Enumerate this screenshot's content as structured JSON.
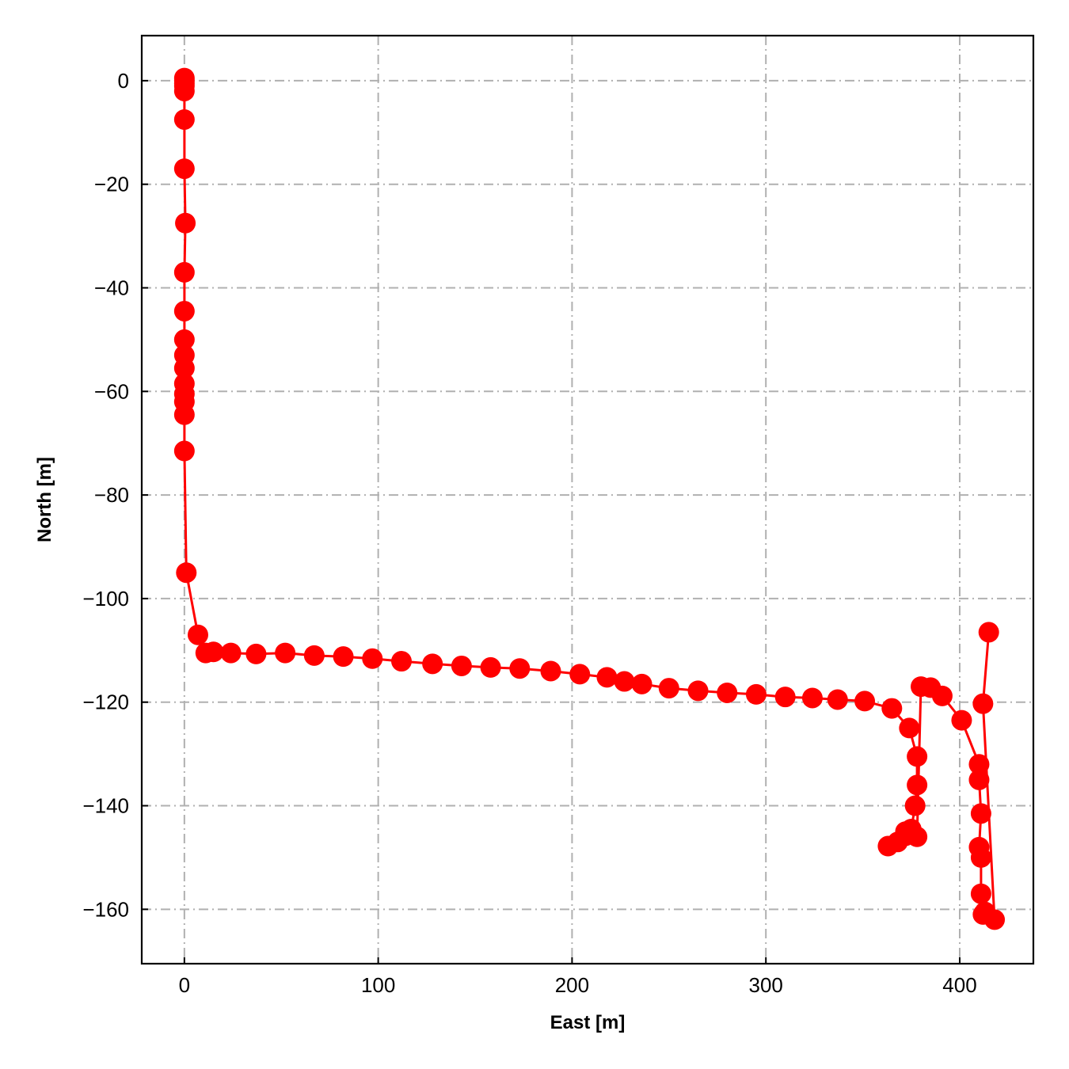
{
  "chart_data": {
    "type": "line",
    "title": "",
    "xlabel": "East [m]",
    "ylabel": "North [m]",
    "xlim": [
      -22,
      438
    ],
    "ylim": [
      -170.5,
      8.7
    ],
    "xticks": [
      0,
      100,
      200,
      300,
      400
    ],
    "yticks": [
      0,
      -20,
      -40,
      -60,
      -80,
      -100,
      -120,
      -140,
      -160
    ],
    "xtick_labels": [
      "0",
      "100",
      "200",
      "300",
      "400"
    ],
    "ytick_labels": [
      "0",
      "−20",
      "−40",
      "−60",
      "−80",
      "−100",
      "−120",
      "−140",
      "−160"
    ],
    "grid": true,
    "legend": "none",
    "series": [
      {
        "color": "#ff0000",
        "marker": "circle",
        "x": [
          0,
          0,
          0,
          0,
          0,
          0,
          0,
          0.5,
          0,
          0,
          0,
          0,
          0,
          0,
          0,
          0,
          0,
          0,
          1,
          7,
          11,
          15,
          24,
          37,
          52,
          67,
          82,
          97,
          112,
          128,
          143,
          158,
          173,
          189,
          204,
          218,
          227,
          236,
          250,
          265,
          280,
          295,
          310,
          324,
          337,
          351,
          365,
          374,
          378,
          378,
          377,
          375,
          372,
          368,
          363,
          372,
          378,
          380,
          385,
          391,
          401,
          410,
          410,
          411,
          410,
          411,
          411,
          412,
          413,
          418,
          412,
          415
        ],
        "y": [
          0,
          0.5,
          -0.5,
          -1,
          -2,
          -7.5,
          -17,
          -27.5,
          -37,
          -44.5,
          -50,
          -53,
          -55.5,
          -58.5,
          -60.5,
          -62,
          -64.5,
          -71.5,
          -95,
          -107,
          -110.5,
          -110.3,
          -110.5,
          -110.7,
          -110.5,
          -111,
          -111.2,
          -111.6,
          -112.1,
          -112.6,
          -113,
          -113.3,
          -113.5,
          -114,
          -114.6,
          -115.2,
          -116,
          -116.5,
          -117.3,
          -117.8,
          -118.2,
          -118.5,
          -119,
          -119.2,
          -119.5,
          -119.8,
          -121.2,
          -125,
          -130.5,
          -136,
          -140,
          -144.5,
          -145.8,
          -147,
          -147.8,
          -145,
          -146,
          -117,
          -117.2,
          -118.8,
          -123.5,
          -132,
          -135,
          -141.5,
          -148,
          -150,
          -157,
          -161,
          -160.5,
          -162,
          -120.3,
          -106.5
        ]
      }
    ]
  }
}
